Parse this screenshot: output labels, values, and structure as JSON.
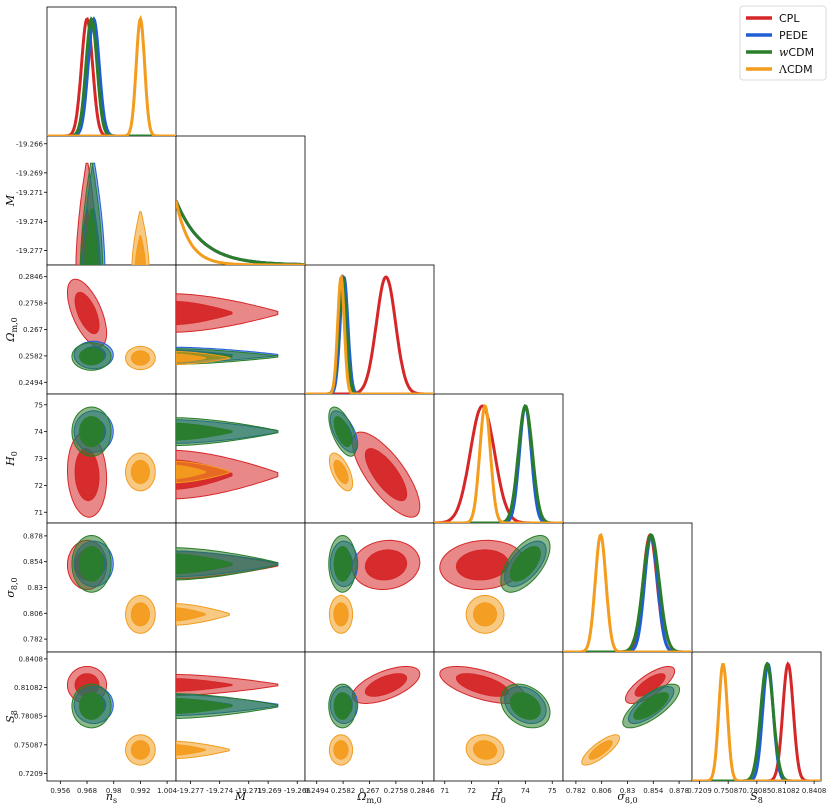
{
  "chart_data": {
    "type": "corner",
    "parameters": [
      {
        "key": "ns",
        "label": "n_s",
        "ticks": [
          "0.956",
          "0.968",
          "0.98",
          "0.992",
          "1.004"
        ],
        "range": [
          0.95,
          1.008
        ]
      },
      {
        "key": "M",
        "label": "M",
        "ticks": [
          "-19.277",
          "-19.274",
          "-19.271",
          "-19.269",
          "-19.266"
        ],
        "range": [
          -19.2785,
          -19.2652
        ]
      },
      {
        "key": "Om",
        "label": "Ω_m,0",
        "ticks": [
          "0.2494",
          "0.2582",
          "0.267",
          "0.2758",
          "0.2846"
        ],
        "range": [
          0.2455,
          0.2885
        ]
      },
      {
        "key": "H0",
        "label": "H_0",
        "ticks": [
          "71",
          "72",
          "73",
          "74",
          "75"
        ],
        "range": [
          70.6,
          75.4
        ]
      },
      {
        "key": "s8",
        "label": "σ_8,0",
        "ticks": [
          "0.782",
          "0.806",
          "0.83",
          "0.854",
          "0.878"
        ],
        "range": [
          0.77,
          0.89
        ]
      },
      {
        "key": "S8",
        "label": "S_8",
        "ticks": [
          "0.7209",
          "0.75087",
          "0.78085",
          "0.81082",
          "0.8408"
        ],
        "range": [
          0.713,
          0.848
        ]
      }
    ],
    "legend": {
      "placement": "top-right",
      "entries": [
        {
          "label": "CPL",
          "style": "normal"
        },
        {
          "label": "PEDE",
          "style": "normal"
        },
        {
          "label": "w",
          "suffix": "CDM",
          "style": "math"
        },
        {
          "label": "Λ",
          "suffix": "CDM",
          "style": "math"
        }
      ]
    },
    "series": [
      {
        "name": "CPL",
        "color": "#d62728",
        "mean": {
          "ns": 0.968,
          "M": -19.2715,
          "Om": 0.2725,
          "H0": 72.4,
          "s8": 0.851,
          "S8": 0.8135
        },
        "sigma": {
          "ns": 0.0025,
          "M": 0.0032,
          "Om": 0.0032,
          "H0": 0.45,
          "s8": 0.0065,
          "S8": 0.0055
        },
        "corr": [
          [
            0,
            2,
            -0.6
          ],
          [
            2,
            3,
            -0.75
          ],
          [
            2,
            5,
            0.6
          ],
          [
            3,
            5,
            -0.6
          ],
          [
            0,
            3,
            -0.1
          ],
          [
            2,
            4,
            0.1
          ],
          [
            3,
            4,
            0.1
          ],
          [
            4,
            5,
            0.75
          ]
        ],
        "M_dist": "exp_tail"
      },
      {
        "name": "PEDE",
        "color": "#1f5fd6",
        "mean": {
          "ns": 0.971,
          "M": -19.274,
          "Om": 0.2585,
          "H0": 74.0,
          "s8": 0.852,
          "S8": 0.7925
        },
        "sigma": {
          "ns": 0.0025,
          "M": 0.0025,
          "Om": 0.0013,
          "H0": 0.22,
          "s8": 0.006,
          "S8": 0.0055
        },
        "corr": [
          [
            2,
            3,
            -0.6
          ],
          [
            3,
            4,
            0.6
          ],
          [
            4,
            5,
            0.75
          ],
          [
            3,
            5,
            -0.3
          ]
        ],
        "M_dist": "exp_tail"
      },
      {
        "name": "wCDM",
        "color": "#2a7d2a",
        "mean": {
          "ns": 0.97,
          "M": -19.2745,
          "Om": 0.258,
          "H0": 74.0,
          "s8": 0.852,
          "S8": 0.7915
        },
        "sigma": {
          "ns": 0.0025,
          "M": 0.0025,
          "Om": 0.0013,
          "H0": 0.26,
          "s8": 0.0075,
          "S8": 0.0065
        },
        "corr": [
          [
            2,
            3,
            -0.6
          ],
          [
            3,
            4,
            0.6
          ],
          [
            4,
            5,
            0.75
          ],
          [
            3,
            5,
            -0.3
          ]
        ],
        "M_dist": "exp_tail"
      },
      {
        "name": "ΛCDM",
        "color": "#f39c1e",
        "mean": {
          "ns": 0.992,
          "M": -19.277,
          "Om": 0.2575,
          "H0": 72.5,
          "s8": 0.805,
          "S8": 0.7455
        },
        "sigma": {
          "ns": 0.0019,
          "M": 0.0012,
          "Om": 0.0011,
          "H0": 0.2,
          "s8": 0.005,
          "S8": 0.0045
        },
        "corr": [
          [
            2,
            3,
            -0.6
          ],
          [
            4,
            5,
            0.8
          ],
          [
            3,
            5,
            -0.1
          ]
        ],
        "M_dist": "exp_tail_short"
      }
    ]
  }
}
